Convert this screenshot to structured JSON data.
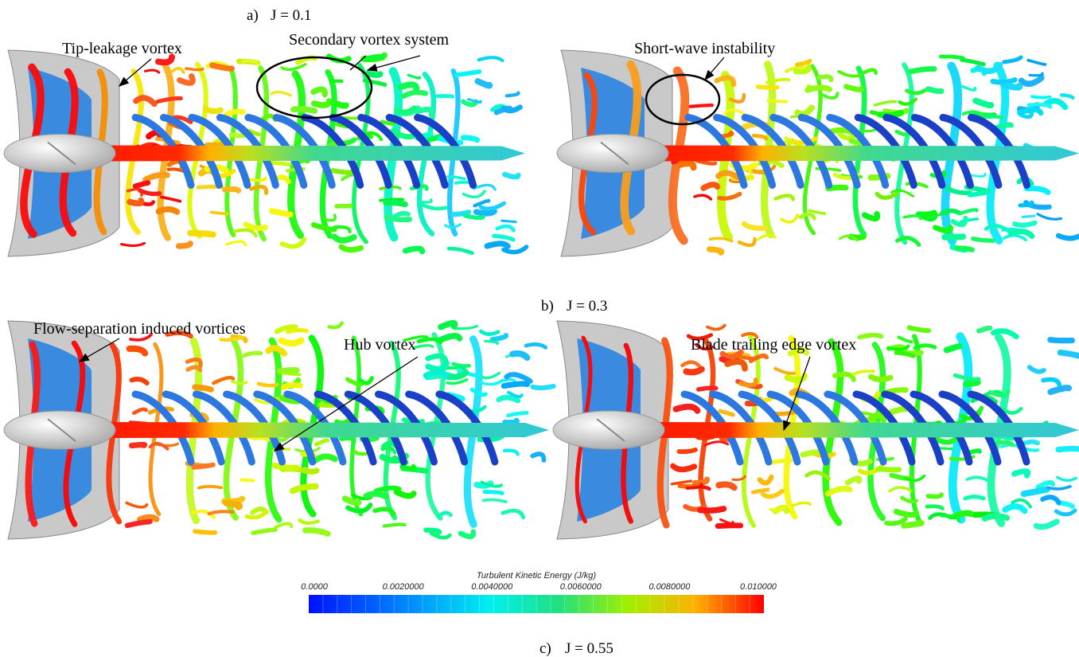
{
  "panels": [
    {
      "label": "a)",
      "caption": "J = 0.1"
    },
    {
      "label": "b)",
      "caption": "J = 0.3"
    },
    {
      "label": "c)",
      "caption": "J = 0.55"
    }
  ],
  "annotations": [
    {
      "text": "Tip-leakage vortex"
    },
    {
      "text": "Secondary vortex system"
    },
    {
      "text": "Short-wave instability"
    },
    {
      "text": "Flow-separation induced vortices"
    },
    {
      "text": "Hub vortex"
    },
    {
      "text": "Blade trailing edge vortex"
    }
  ],
  "colorbar": {
    "title": "Turbulent Kinetic Energy (J/kg)",
    "ticks": [
      "0.0000",
      "0.0020000",
      "0.0040000",
      "0.0060000",
      "0.0080000",
      "0.010000"
    ]
  }
}
